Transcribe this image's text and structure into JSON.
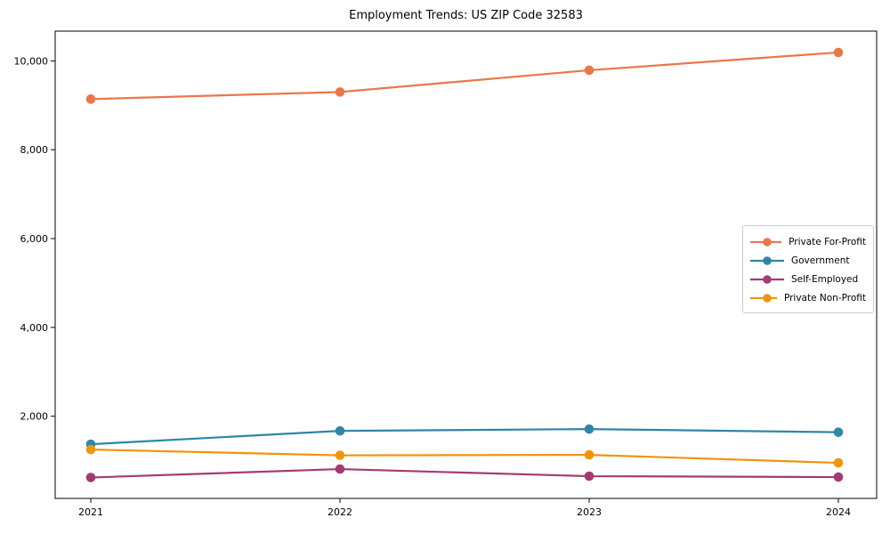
{
  "title": "Employment Trends: US ZIP Code 32583",
  "chart_data": {
    "type": "line",
    "title": "Employment Trends: US ZIP Code 32583",
    "x": [
      2021,
      2022,
      2023,
      2024
    ],
    "x_tick_labels": [
      "2021",
      "2022",
      "2023",
      "2024"
    ],
    "y_ticks": [
      2000,
      4000,
      6000,
      8000,
      10000
    ],
    "y_tick_labels": [
      "2,000",
      "4,000",
      "6,000",
      "8,000",
      "10,000"
    ],
    "ylim": [
      150,
      10670
    ],
    "grid": false,
    "legend_position": "center right",
    "marker": "circle",
    "series": [
      {
        "name": "Private For-Profit",
        "color": "#E8784B",
        "values": [
          9140,
          9300,
          9790,
          10190
        ]
      },
      {
        "name": "Government",
        "color": "#2E86A8",
        "values": [
          1370,
          1670,
          1710,
          1640
        ]
      },
      {
        "name": "Self-Employed",
        "color": "#A23B72",
        "values": [
          620,
          810,
          650,
          630
        ]
      },
      {
        "name": "Private Non-Profit",
        "color": "#F0940F",
        "values": [
          1250,
          1120,
          1130,
          950
        ]
      }
    ]
  }
}
